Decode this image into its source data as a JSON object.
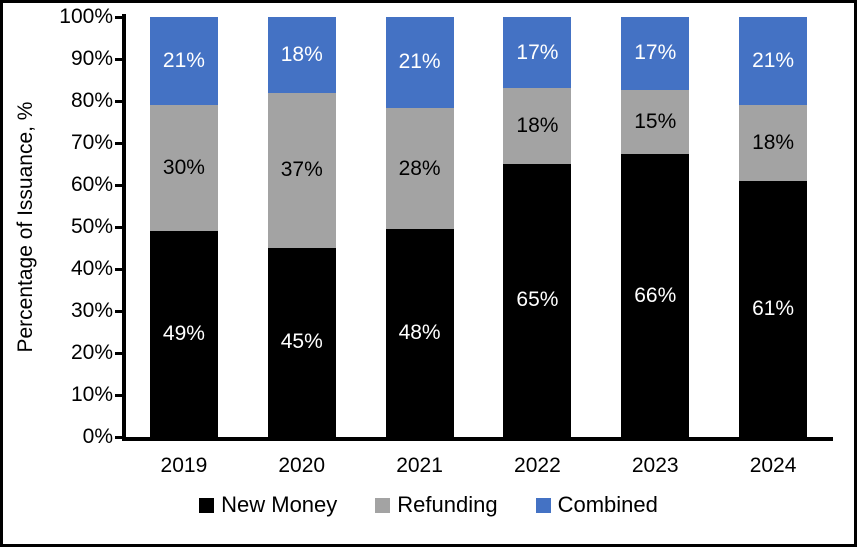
{
  "chart_data": {
    "type": "bar",
    "stacked": true,
    "title": "",
    "ylabel": "Percentage of Issuance, %",
    "xlabel": "",
    "categories": [
      "2019",
      "2020",
      "2021",
      "2022",
      "2023",
      "2024"
    ],
    "series": [
      {
        "name": "New Money",
        "color": "#000000",
        "label_color": "#ffffff",
        "values": [
          49,
          45,
          48,
          65,
          66,
          61
        ]
      },
      {
        "name": "Refunding",
        "color": "#a3a3a3",
        "label_color": "#000000",
        "values": [
          30,
          37,
          28,
          18,
          15,
          18
        ]
      },
      {
        "name": "Combined",
        "color": "#4472c4",
        "label_color": "#ffffff",
        "values": [
          21,
          18,
          21,
          17,
          17,
          21
        ]
      }
    ],
    "value_suffix": "%",
    "ylim": [
      0,
      100
    ],
    "yticks": [
      "0%",
      "10%",
      "20%",
      "30%",
      "40%",
      "50%",
      "60%",
      "70%",
      "80%",
      "90%",
      "100%"
    ],
    "grid": false,
    "legend_position": "bottom",
    "axis_color": "#000000",
    "background": "#ffffff"
  }
}
